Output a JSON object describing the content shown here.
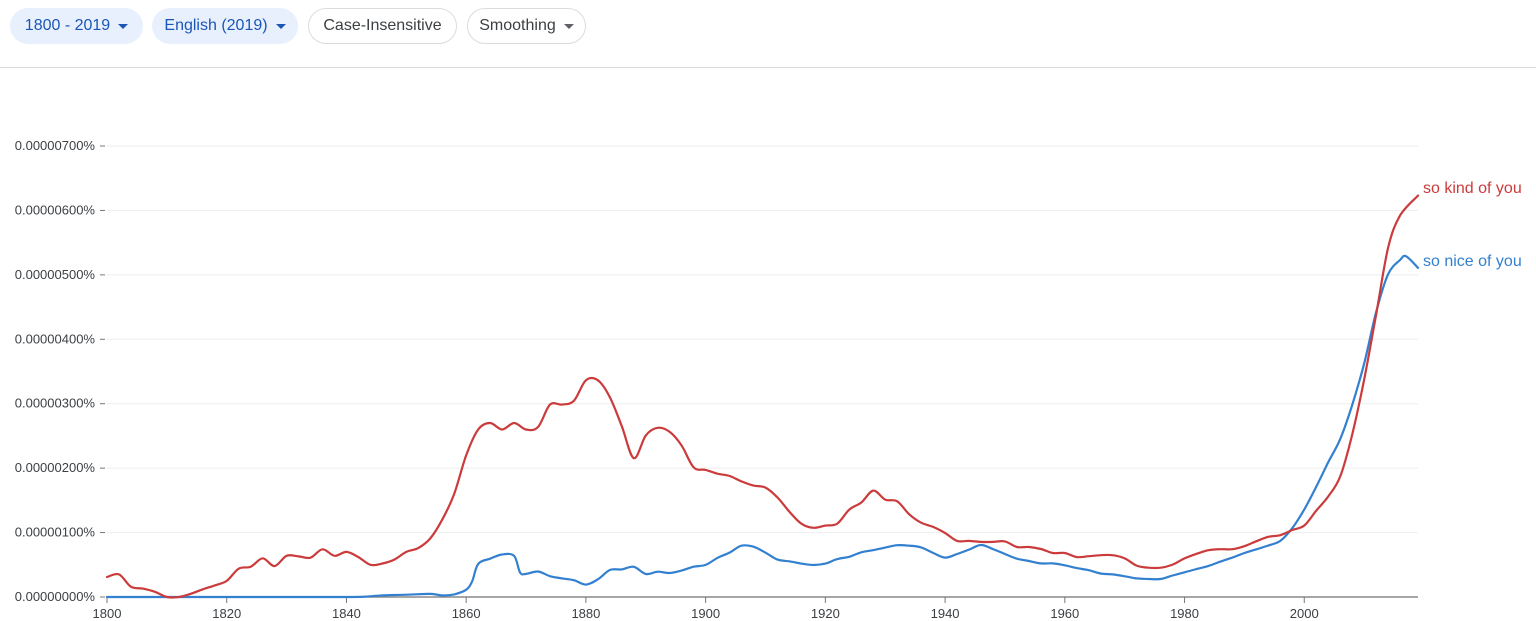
{
  "toolbar": {
    "range_label": "1800 - 2019",
    "corpus_label": "English (2019)",
    "case_label": "Case-Insensitive",
    "smoothing_label": "Smoothing"
  },
  "colors": {
    "chip_blue_bg": "#e8f0fe",
    "chip_blue_text": "#1a56b5",
    "so_kind_of_you": "#cb3b3b",
    "so_nice_of_you": "#3380d0",
    "grid": "#eeeeee",
    "axis": "#777777"
  },
  "icons": {
    "dropdown": "caret-down-icon"
  },
  "chart_data": {
    "type": "line",
    "title": "",
    "xlabel": "",
    "ylabel": "",
    "xlim": [
      1800,
      2019
    ],
    "ylim": [
      0,
      7e-06
    ],
    "grid": true,
    "legend": "line-end labels on the right",
    "y_ticks": [
      "0.00000000%",
      "0.00000100%",
      "0.00000200%",
      "0.00000300%",
      "0.00000400%",
      "0.00000500%",
      "0.00000600%",
      "0.00000700%"
    ],
    "x_ticks": [
      "1800",
      "1820",
      "1840",
      "1860",
      "1880",
      "1900",
      "1920",
      "1940",
      "1960",
      "1980",
      "2000"
    ],
    "series": [
      {
        "name": "so kind of you",
        "color": "#cb3b3b",
        "points": [
          [
            1800,
            3.1e-07
          ],
          [
            1802,
            3.5e-07
          ],
          [
            1804,
            1.6e-07
          ],
          [
            1806,
            1.3e-07
          ],
          [
            1808,
            8e-08
          ],
          [
            1810,
            0.0
          ],
          [
            1812,
            0.0
          ],
          [
            1814,
            5e-08
          ],
          [
            1816,
            1.2e-07
          ],
          [
            1818,
            1.8e-07
          ],
          [
            1820,
            2.5e-07
          ],
          [
            1822,
            4.4e-07
          ],
          [
            1824,
            4.7e-07
          ],
          [
            1826,
            6e-07
          ],
          [
            1828,
            4.8e-07
          ],
          [
            1830,
            6.4e-07
          ],
          [
            1832,
            6.3e-07
          ],
          [
            1834,
            6.1e-07
          ],
          [
            1836,
            7.4e-07
          ],
          [
            1838,
            6.4e-07
          ],
          [
            1840,
            7e-07
          ],
          [
            1842,
            6.2e-07
          ],
          [
            1844,
            5e-07
          ],
          [
            1846,
            5.2e-07
          ],
          [
            1848,
            5.8e-07
          ],
          [
            1850,
            7e-07
          ],
          [
            1852,
            7.6e-07
          ],
          [
            1854,
            9.1e-07
          ],
          [
            1856,
            1.2e-06
          ],
          [
            1858,
            1.6e-06
          ],
          [
            1860,
            2.2e-06
          ],
          [
            1862,
            2.6e-06
          ],
          [
            1864,
            2.7e-06
          ],
          [
            1866,
            2.6e-06
          ],
          [
            1868,
            2.7e-06
          ],
          [
            1870,
            2.6e-06
          ],
          [
            1872,
            2.638e-06
          ],
          [
            1874,
            2.986e-06
          ],
          [
            1876,
            2.986e-06
          ],
          [
            1878,
            3.046e-06
          ],
          [
            1880,
            3.363e-06
          ],
          [
            1882,
            3.363e-06
          ],
          [
            1884,
            3.103e-06
          ],
          [
            1886,
            2.651e-06
          ],
          [
            1888,
            2.155e-06
          ],
          [
            1890,
            2.508e-06
          ],
          [
            1892,
            2.626e-06
          ],
          [
            1894,
            2.563e-06
          ],
          [
            1896,
            2.349e-06
          ],
          [
            1898,
            2.011e-06
          ],
          [
            1900,
            1.973e-06
          ],
          [
            1902,
            1.913e-06
          ],
          [
            1904,
            1.878e-06
          ],
          [
            1906,
            1.795e-06
          ],
          [
            1908,
            1.729e-06
          ],
          [
            1910,
            1.698e-06
          ],
          [
            1912,
            1.545e-06
          ],
          [
            1914,
            1.324e-06
          ],
          [
            1916,
            1.137e-06
          ],
          [
            1918,
            1.074e-06
          ],
          [
            1920,
            1.108e-06
          ],
          [
            1922,
            1.139e-06
          ],
          [
            1924,
            1.357e-06
          ],
          [
            1926,
            1.466e-06
          ],
          [
            1928,
            1.651e-06
          ],
          [
            1930,
            1.512e-06
          ],
          [
            1932,
            1.485e-06
          ],
          [
            1934,
            1.284e-06
          ],
          [
            1936,
            1.153e-06
          ],
          [
            1938,
            1.088e-06
          ],
          [
            1940,
            9.93e-07
          ],
          [
            1942,
            8.71e-07
          ],
          [
            1944,
            8.71e-07
          ],
          [
            1946,
            8.55e-07
          ],
          [
            1948,
            8.55e-07
          ],
          [
            1950,
            8.63e-07
          ],
          [
            1952,
            7.76e-07
          ],
          [
            1954,
            7.76e-07
          ],
          [
            1956,
            7.45e-07
          ],
          [
            1958,
            6.83e-07
          ],
          [
            1960,
            6.83e-07
          ],
          [
            1962,
            6.2e-07
          ],
          [
            1964,
            6.33e-07
          ],
          [
            1966,
            6.49e-07
          ],
          [
            1968,
            6.49e-07
          ],
          [
            1970,
            5.99e-07
          ],
          [
            1972,
            4.87e-07
          ],
          [
            1974,
            4.55e-07
          ],
          [
            1976,
            4.55e-07
          ],
          [
            1978,
            5.03e-07
          ],
          [
            1980,
            5.99e-07
          ],
          [
            1982,
            6.7e-07
          ],
          [
            1984,
            7.26e-07
          ],
          [
            1986,
            7.42e-07
          ],
          [
            1988,
            7.42e-07
          ],
          [
            1990,
            7.89e-07
          ],
          [
            1992,
            8.66e-07
          ],
          [
            1994,
            9.35e-07
          ],
          [
            1996,
            9.59e-07
          ],
          [
            1998,
            1.04e-06
          ],
          [
            2000,
            1.11e-06
          ],
          [
            2002,
            1.34e-06
          ],
          [
            2004,
            1.56e-06
          ],
          [
            2006,
            1.87e-06
          ],
          [
            2008,
            2.52e-06
          ],
          [
            2010,
            3.37e-06
          ],
          [
            2012,
            4.38e-06
          ],
          [
            2014,
            5.42e-06
          ],
          [
            2016,
            5.92e-06
          ],
          [
            2019,
            6.23e-06
          ]
        ]
      },
      {
        "name": "so nice of you",
        "color": "#3380d0",
        "points": [
          [
            1800,
            0.0
          ],
          [
            1810,
            0.0
          ],
          [
            1820,
            0.0
          ],
          [
            1830,
            0.0
          ],
          [
            1840,
            0.0
          ],
          [
            1843,
            4e-09
          ],
          [
            1846,
            2.5e-08
          ],
          [
            1850,
            3.5e-08
          ],
          [
            1854,
            4.8e-08
          ],
          [
            1856,
            2.5e-08
          ],
          [
            1858,
            4.1e-08
          ],
          [
            1860,
            1.14e-07
          ],
          [
            1861,
            2.45e-07
          ],
          [
            1862,
            5.14e-07
          ],
          [
            1864,
            5.95e-07
          ],
          [
            1866,
            6.6e-07
          ],
          [
            1868,
            6.38e-07
          ],
          [
            1869,
            3.79e-07
          ],
          [
            1870,
            3.58e-07
          ],
          [
            1872,
            3.96e-07
          ],
          [
            1874,
            3.23e-07
          ],
          [
            1876,
            2.88e-07
          ],
          [
            1878,
            2.61e-07
          ],
          [
            1880,
            1.93e-07
          ],
          [
            1882,
            2.74e-07
          ],
          [
            1884,
            4.19e-07
          ],
          [
            1886,
            4.29e-07
          ],
          [
            1888,
            4.68e-07
          ],
          [
            1890,
            3.57e-07
          ],
          [
            1892,
            3.92e-07
          ],
          [
            1894,
            3.73e-07
          ],
          [
            1896,
            4.11e-07
          ],
          [
            1898,
            4.7e-07
          ],
          [
            1900,
            4.98e-07
          ],
          [
            1902,
            6.08e-07
          ],
          [
            1904,
            6.89e-07
          ],
          [
            1906,
            7.97e-07
          ],
          [
            1908,
            7.8e-07
          ],
          [
            1910,
            6.88e-07
          ],
          [
            1912,
            5.8e-07
          ],
          [
            1914,
            5.54e-07
          ],
          [
            1916,
            5.19e-07
          ],
          [
            1918,
            4.96e-07
          ],
          [
            1920,
            5.19e-07
          ],
          [
            1922,
            5.89e-07
          ],
          [
            1924,
            6.24e-07
          ],
          [
            1926,
            6.94e-07
          ],
          [
            1928,
            7.27e-07
          ],
          [
            1930,
            7.66e-07
          ],
          [
            1932,
            8.04e-07
          ],
          [
            1934,
            7.97e-07
          ],
          [
            1936,
            7.7e-07
          ],
          [
            1938,
            6.85e-07
          ],
          [
            1940,
            6.11e-07
          ],
          [
            1942,
            6.67e-07
          ],
          [
            1944,
            7.35e-07
          ],
          [
            1946,
            8.07e-07
          ],
          [
            1948,
            7.44e-07
          ],
          [
            1950,
            6.67e-07
          ],
          [
            1952,
            5.95e-07
          ],
          [
            1954,
            5.59e-07
          ],
          [
            1956,
            5.21e-07
          ],
          [
            1958,
            5.21e-07
          ],
          [
            1960,
            4.92e-07
          ],
          [
            1962,
            4.49e-07
          ],
          [
            1964,
            4.16e-07
          ],
          [
            1966,
            3.65e-07
          ],
          [
            1968,
            3.5e-07
          ],
          [
            1970,
            3.22e-07
          ],
          [
            1972,
            2.89e-07
          ],
          [
            1974,
            2.79e-07
          ],
          [
            1976,
            2.79e-07
          ],
          [
            1978,
            3.34e-07
          ],
          [
            1980,
            3.83e-07
          ],
          [
            1982,
            4.34e-07
          ],
          [
            1984,
            4.82e-07
          ],
          [
            1986,
            5.5e-07
          ],
          [
            1988,
            6.12e-07
          ],
          [
            1990,
            6.83e-07
          ],
          [
            1992,
            7.41e-07
          ],
          [
            1994,
            7.99e-07
          ],
          [
            1996,
            8.71e-07
          ],
          [
            1998,
            1.07e-06
          ],
          [
            2000,
            1.36e-06
          ],
          [
            2002,
            1.71e-06
          ],
          [
            2004,
            2.09e-06
          ],
          [
            2006,
            2.45e-06
          ],
          [
            2008,
            2.98e-06
          ],
          [
            2010,
            3.62e-06
          ],
          [
            2012,
            4.42e-06
          ],
          [
            2014,
            5.01e-06
          ],
          [
            2016,
            5.23e-06
          ],
          [
            2017,
            5.29e-06
          ],
          [
            2019,
            5.11e-06
          ]
        ]
      }
    ]
  }
}
